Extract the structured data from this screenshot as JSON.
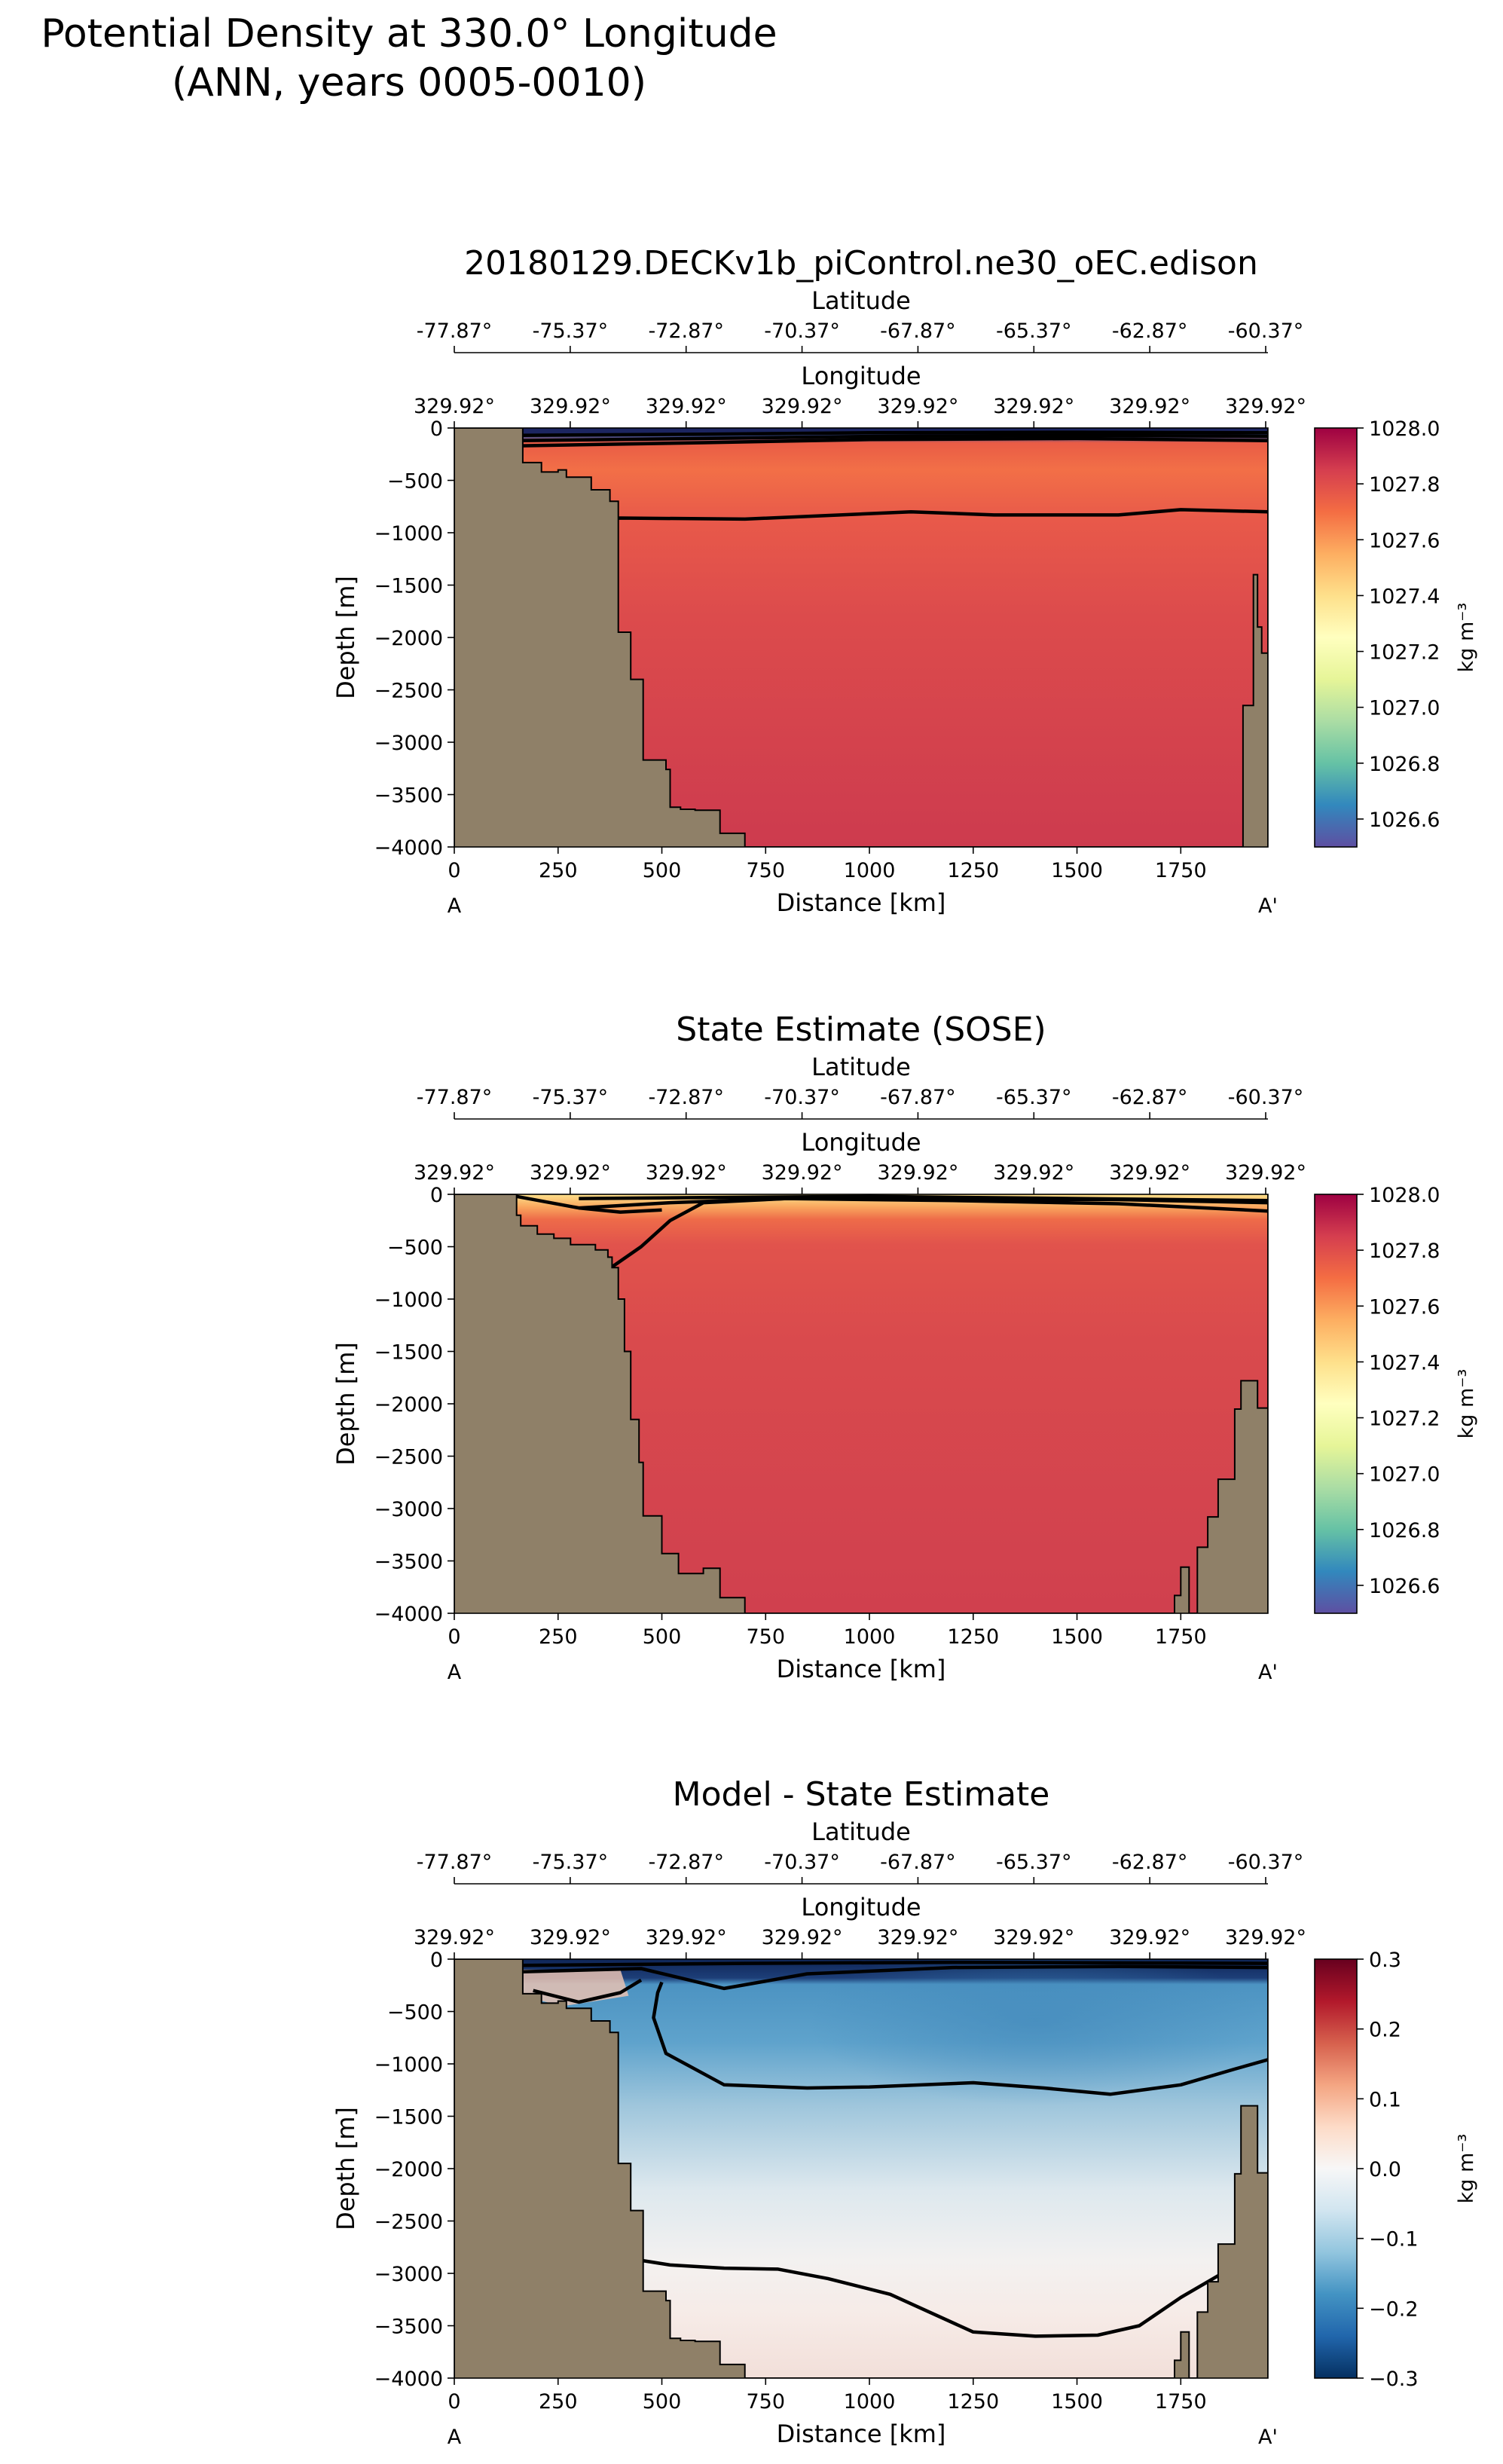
{
  "figure": {
    "title_line1": "Potential Density at 330.0° Longitude",
    "title_line2": "(ANN, years 0005-0010)"
  },
  "chart_data": [
    {
      "type": "heatmap",
      "title": "20180129.DECKv1b_piControl.ne30_oEC.edison",
      "xlabel": "Distance [km]",
      "ylabel": "Depth [m]",
      "xlim": [
        0,
        1960
      ],
      "ylim": [
        -4000,
        0
      ],
      "xticks": [
        "0",
        "250",
        "500",
        "750",
        "1000",
        "1250",
        "1500",
        "1750"
      ],
      "yticks": [
        "0",
        "−500",
        "−1000",
        "−1500",
        "−2000",
        "−2500",
        "−3000",
        "−3500",
        "−4000"
      ],
      "start_label": "A",
      "end_label": "A'",
      "lat_label": "Latitude",
      "lat_ticks": [
        "-77.87°",
        "-75.37°",
        "-72.87°",
        "-70.37°",
        "-67.87°",
        "-65.37°",
        "-62.87°",
        "-60.37°"
      ],
      "lon_label": "Longitude",
      "lon_ticks": [
        "329.92°",
        "329.92°",
        "329.92°",
        "329.92°",
        "329.92°",
        "329.92°",
        "329.92°",
        "329.92°"
      ],
      "colorbar": {
        "label": "kg m⁻³",
        "range": [
          1026.5,
          1028.0
        ],
        "ticks": [
          "1028.0",
          "1027.8",
          "1027.6",
          "1027.4",
          "1027.2",
          "1027.0",
          "1026.8",
          "1026.6"
        ],
        "tick_values": [
          1028.0,
          1027.8,
          1027.6,
          1027.4,
          1027.2,
          1027.0,
          1026.8,
          1026.6
        ],
        "colormap": "Spectral_r"
      },
      "land_color": "#8f8068",
      "bathymetry": [
        [
          0,
          0
        ],
        [
          165,
          0
        ],
        [
          165,
          -330
        ],
        [
          210,
          -330
        ],
        [
          210,
          -420
        ],
        [
          250,
          -420
        ],
        [
          250,
          -400
        ],
        [
          270,
          -400
        ],
        [
          270,
          -470
        ],
        [
          330,
          -470
        ],
        [
          330,
          -590
        ],
        [
          375,
          -590
        ],
        [
          375,
          -700
        ],
        [
          395,
          -700
        ],
        [
          395,
          -1950
        ],
        [
          425,
          -1950
        ],
        [
          425,
          -2400
        ],
        [
          455,
          -2400
        ],
        [
          455,
          -3170
        ],
        [
          510,
          -3170
        ],
        [
          510,
          -3260
        ],
        [
          520,
          -3260
        ],
        [
          520,
          -3620
        ],
        [
          545,
          -3620
        ],
        [
          545,
          -3640
        ],
        [
          580,
          -3640
        ],
        [
          580,
          -3650
        ],
        [
          640,
          -3650
        ],
        [
          640,
          -3870
        ],
        [
          700,
          -3870
        ],
        [
          700,
          -4000
        ],
        [
          1900,
          -4000
        ],
        [
          1900,
          -2650
        ],
        [
          1925,
          -2650
        ],
        [
          1925,
          -1400
        ],
        [
          1935,
          -1400
        ],
        [
          1935,
          -1900
        ],
        [
          1945,
          -1900
        ],
        [
          1945,
          -2150
        ],
        [
          1960,
          -2150
        ],
        [
          1960,
          0
        ]
      ],
      "contours": [
        [
          [
            160,
            -900
          ],
          [
            400,
            -860
          ],
          [
            700,
            -870
          ],
          [
            1100,
            -800
          ],
          [
            1300,
            -830
          ],
          [
            1600,
            -830
          ],
          [
            1750,
            -780
          ],
          [
            1960,
            -800
          ]
        ],
        [
          [
            160,
            -170
          ],
          [
            600,
            -140
          ],
          [
            1000,
            -110
          ],
          [
            1500,
            -100
          ],
          [
            1960,
            -120
          ]
        ],
        [
          [
            160,
            -120
          ],
          [
            600,
            -100
          ],
          [
            1000,
            -80
          ],
          [
            1500,
            -70
          ],
          [
            1960,
            -80
          ]
        ],
        [
          [
            160,
            -70
          ],
          [
            600,
            -60
          ],
          [
            1000,
            -45
          ],
          [
            1500,
            -40
          ],
          [
            1960,
            -45
          ]
        ]
      ],
      "grid": false
    },
    {
      "type": "heatmap",
      "title": "State Estimate (SOSE)",
      "xlabel": "Distance [km]",
      "ylabel": "Depth [m]",
      "xlim": [
        0,
        1960
      ],
      "ylim": [
        -4000,
        0
      ],
      "xticks": [
        "0",
        "250",
        "500",
        "750",
        "1000",
        "1250",
        "1500",
        "1750"
      ],
      "yticks": [
        "0",
        "−500",
        "−1000",
        "−1500",
        "−2000",
        "−2500",
        "−3000",
        "−3500",
        "−4000"
      ],
      "start_label": "A",
      "end_label": "A'",
      "lat_label": "Latitude",
      "lat_ticks": [
        "-77.87°",
        "-75.37°",
        "-72.87°",
        "-70.37°",
        "-67.87°",
        "-65.37°",
        "-62.87°",
        "-60.37°"
      ],
      "lon_label": "Longitude",
      "lon_ticks": [
        "329.92°",
        "329.92°",
        "329.92°",
        "329.92°",
        "329.92°",
        "329.92°",
        "329.92°",
        "329.92°"
      ],
      "colorbar": {
        "label": "kg m⁻³",
        "range": [
          1026.5,
          1028.0
        ],
        "ticks": [
          "1028.0",
          "1027.8",
          "1027.6",
          "1027.4",
          "1027.2",
          "1027.0",
          "1026.8",
          "1026.6"
        ],
        "tick_values": [
          1028.0,
          1027.8,
          1027.6,
          1027.4,
          1027.2,
          1027.0,
          1026.8,
          1026.6
        ],
        "colormap": "Spectral_r"
      },
      "land_color": "#8f8068",
      "bathymetry": [
        [
          0,
          0
        ],
        [
          150,
          0
        ],
        [
          150,
          -200
        ],
        [
          160,
          -200
        ],
        [
          160,
          -300
        ],
        [
          200,
          -300
        ],
        [
          200,
          -380
        ],
        [
          240,
          -380
        ],
        [
          240,
          -420
        ],
        [
          280,
          -420
        ],
        [
          280,
          -480
        ],
        [
          340,
          -480
        ],
        [
          340,
          -530
        ],
        [
          370,
          -530
        ],
        [
          370,
          -600
        ],
        [
          380,
          -600
        ],
        [
          380,
          -700
        ],
        [
          395,
          -700
        ],
        [
          395,
          -1000
        ],
        [
          410,
          -1000
        ],
        [
          410,
          -1500
        ],
        [
          425,
          -1500
        ],
        [
          425,
          -2150
        ],
        [
          445,
          -2150
        ],
        [
          445,
          -2560
        ],
        [
          455,
          -2560
        ],
        [
          455,
          -3070
        ],
        [
          500,
          -3070
        ],
        [
          500,
          -3430
        ],
        [
          540,
          -3430
        ],
        [
          540,
          -3620
        ],
        [
          600,
          -3620
        ],
        [
          600,
          -3570
        ],
        [
          640,
          -3570
        ],
        [
          640,
          -3850
        ],
        [
          700,
          -3850
        ],
        [
          700,
          -4000
        ],
        [
          1735,
          -4000
        ],
        [
          1735,
          -3830
        ],
        [
          1750,
          -3830
        ],
        [
          1750,
          -3560
        ],
        [
          1770,
          -3560
        ],
        [
          1770,
          -4000
        ],
        [
          1790,
          -4000
        ],
        [
          1790,
          -3370
        ],
        [
          1815,
          -3370
        ],
        [
          1815,
          -3080
        ],
        [
          1840,
          -3080
        ],
        [
          1840,
          -2720
        ],
        [
          1880,
          -2720
        ],
        [
          1880,
          -2050
        ],
        [
          1895,
          -2050
        ],
        [
          1895,
          -1780
        ],
        [
          1935,
          -1780
        ],
        [
          1935,
          -2040
        ],
        [
          1960,
          -2040
        ],
        [
          1960,
          0
        ]
      ],
      "contours": [
        [
          [
            370,
            -720
          ],
          [
            450,
            -500
          ],
          [
            520,
            -250
          ],
          [
            600,
            -80
          ],
          [
            800,
            -40
          ],
          [
            1200,
            -45
          ],
          [
            1600,
            -50
          ],
          [
            1960,
            -80
          ]
        ],
        [
          [
            300,
            -130
          ],
          [
            520,
            -80
          ],
          [
            800,
            -40
          ],
          [
            1200,
            -60
          ],
          [
            1600,
            -90
          ],
          [
            1960,
            -160
          ]
        ],
        [
          [
            300,
            -40
          ],
          [
            600,
            -30
          ],
          [
            1000,
            -20
          ],
          [
            1500,
            -40
          ],
          [
            1960,
            -60
          ]
        ],
        [
          [
            150,
            -20
          ],
          [
            300,
            -130
          ],
          [
            400,
            -170
          ],
          [
            500,
            -150
          ]
        ]
      ],
      "grid": false
    },
    {
      "type": "heatmap",
      "title": "Model - State Estimate",
      "xlabel": "Distance [km]",
      "ylabel": "Depth [m]",
      "xlim": [
        0,
        1960
      ],
      "ylim": [
        -4000,
        0
      ],
      "xticks": [
        "0",
        "250",
        "500",
        "750",
        "1000",
        "1250",
        "1500",
        "1750"
      ],
      "yticks": [
        "0",
        "−500",
        "−1000",
        "−1500",
        "−2000",
        "−2500",
        "−3000",
        "−3500",
        "−4000"
      ],
      "start_label": "A",
      "end_label": "A'",
      "lat_label": "Latitude",
      "lat_ticks": [
        "-77.87°",
        "-75.37°",
        "-72.87°",
        "-70.37°",
        "-67.87°",
        "-65.37°",
        "-62.87°",
        "-60.37°"
      ],
      "lon_label": "Longitude",
      "lon_ticks": [
        "329.92°",
        "329.92°",
        "329.92°",
        "329.92°",
        "329.92°",
        "329.92°",
        "329.92°",
        "329.92°"
      ],
      "colorbar": {
        "label": "kg m⁻³",
        "range": [
          -0.3,
          0.3
        ],
        "ticks": [
          "0.3",
          "0.2",
          "0.1",
          "0.0",
          "−0.1",
          "−0.2",
          "−0.3"
        ],
        "tick_values": [
          0.3,
          0.2,
          0.1,
          0.0,
          -0.1,
          -0.2,
          -0.3
        ],
        "colormap": "RdBu_r"
      },
      "land_color": "#8f8068",
      "bathymetry": [
        [
          0,
          0
        ],
        [
          165,
          0
        ],
        [
          165,
          -330
        ],
        [
          210,
          -330
        ],
        [
          210,
          -420
        ],
        [
          250,
          -420
        ],
        [
          250,
          -400
        ],
        [
          270,
          -400
        ],
        [
          270,
          -470
        ],
        [
          330,
          -470
        ],
        [
          330,
          -590
        ],
        [
          375,
          -590
        ],
        [
          375,
          -700
        ],
        [
          395,
          -700
        ],
        [
          395,
          -1950
        ],
        [
          425,
          -1950
        ],
        [
          425,
          -2400
        ],
        [
          455,
          -2400
        ],
        [
          455,
          -3170
        ],
        [
          510,
          -3170
        ],
        [
          510,
          -3260
        ],
        [
          520,
          -3260
        ],
        [
          520,
          -3620
        ],
        [
          545,
          -3620
        ],
        [
          545,
          -3640
        ],
        [
          580,
          -3640
        ],
        [
          580,
          -3650
        ],
        [
          640,
          -3650
        ],
        [
          640,
          -3870
        ],
        [
          700,
          -3870
        ],
        [
          700,
          -4000
        ],
        [
          1735,
          -4000
        ],
        [
          1735,
          -3830
        ],
        [
          1750,
          -3830
        ],
        [
          1750,
          -3560
        ],
        [
          1770,
          -3560
        ],
        [
          1770,
          -4000
        ],
        [
          1790,
          -4000
        ],
        [
          1790,
          -3370
        ],
        [
          1815,
          -3370
        ],
        [
          1815,
          -3080
        ],
        [
          1840,
          -3080
        ],
        [
          1840,
          -2720
        ],
        [
          1880,
          -2720
        ],
        [
          1880,
          -2050
        ],
        [
          1895,
          -2050
        ],
        [
          1895,
          -1400
        ],
        [
          1935,
          -1400
        ],
        [
          1935,
          -2040
        ],
        [
          1960,
          -2040
        ],
        [
          1960,
          0
        ]
      ],
      "contours": [
        [
          [
            440,
            -2870
          ],
          [
            520,
            -2920
          ],
          [
            650,
            -2950
          ],
          [
            780,
            -2960
          ],
          [
            900,
            -3050
          ],
          [
            1050,
            -3200
          ],
          [
            1250,
            -3560
          ],
          [
            1400,
            -3600
          ],
          [
            1550,
            -3590
          ],
          [
            1650,
            -3500
          ],
          [
            1750,
            -3230
          ],
          [
            1880,
            -2930
          ]
        ],
        [
          [
            500,
            -220
          ],
          [
            490,
            -320
          ],
          [
            480,
            -560
          ],
          [
            510,
            -900
          ],
          [
            650,
            -1200
          ],
          [
            850,
            -1230
          ],
          [
            1000,
            -1220
          ],
          [
            1250,
            -1180
          ],
          [
            1420,
            -1230
          ],
          [
            1580,
            -1290
          ],
          [
            1750,
            -1200
          ],
          [
            1880,
            -1050
          ],
          [
            1960,
            -960
          ]
        ],
        [
          [
            190,
            -300
          ],
          [
            300,
            -410
          ],
          [
            400,
            -320
          ],
          [
            450,
            -200
          ]
        ],
        [
          [
            165,
            -120
          ],
          [
            450,
            -90
          ],
          [
            650,
            -280
          ],
          [
            850,
            -140
          ],
          [
            1200,
            -80
          ],
          [
            1600,
            -70
          ],
          [
            1960,
            -80
          ]
        ],
        [
          [
            165,
            -60
          ],
          [
            700,
            -40
          ],
          [
            1200,
            -30
          ],
          [
            1960,
            -40
          ]
        ]
      ],
      "grid": false
    }
  ]
}
